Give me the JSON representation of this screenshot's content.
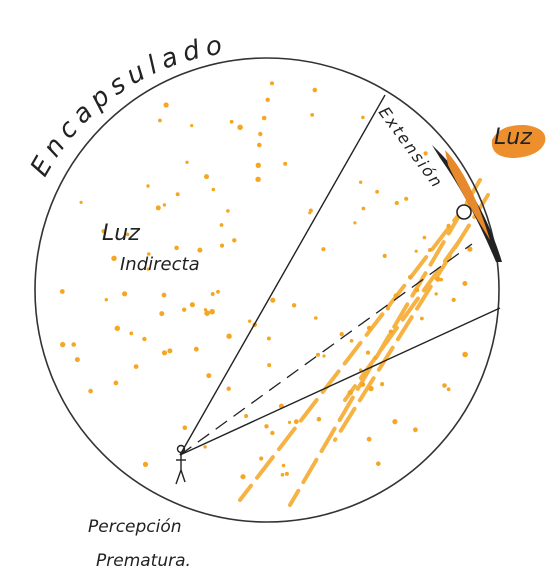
{
  "labels": {
    "enclosure": "Encapsulado",
    "light": "Luz",
    "extension": "Extensión",
    "indirect_light": [
      "Luz",
      "Indirecta"
    ],
    "perception": [
      "Percepción",
      "Prematura."
    ]
  }
}
